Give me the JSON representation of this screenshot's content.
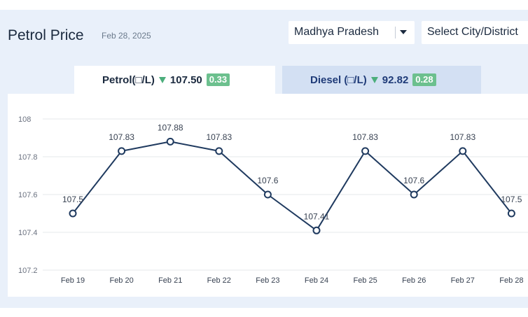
{
  "header": {
    "title": "Petrol Price",
    "date": "Feb 28, 2025"
  },
  "filters": {
    "state_value": "Madhya Pradesh",
    "city_placeholder": "Select City/District"
  },
  "tabs": [
    {
      "label": "Petrol(□/L)",
      "price": "107.50",
      "change": "0.33",
      "active": true
    },
    {
      "label": "Diesel (□/L)",
      "price": "92.82",
      "change": "0.28",
      "active": false
    }
  ],
  "colors": {
    "line": "#1f3a5f",
    "change_down": "#4cae7c",
    "badge": "#6cc08e",
    "panel": "#e9f0fa",
    "inactive_tab": "#d3e0f3"
  },
  "chart_data": {
    "type": "line",
    "categories": [
      "Feb 19",
      "Feb 20",
      "Feb 21",
      "Feb 22",
      "Feb 23",
      "Feb 24",
      "Feb 25",
      "Feb 26",
      "Feb 27",
      "Feb 28"
    ],
    "values": [
      107.5,
      107.83,
      107.88,
      107.83,
      107.6,
      107.41,
      107.83,
      107.6,
      107.83,
      107.5
    ],
    "data_labels": [
      "107.5",
      "107.83",
      "107.88",
      "107.83",
      "107.6",
      "107.41",
      "107.83",
      "107.6",
      "107.83",
      "107.5"
    ],
    "ylim": [
      107.2,
      108
    ],
    "yticks": [
      "107.2",
      "107.4",
      "107.6",
      "107.8",
      "108"
    ],
    "ytick_values": [
      107.2,
      107.4,
      107.6,
      107.8,
      108
    ],
    "grid": true
  }
}
